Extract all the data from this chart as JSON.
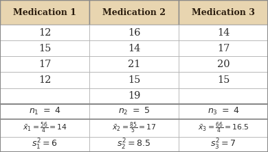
{
  "headers": [
    "Medication 1",
    "Medication 2",
    "Medication 3"
  ],
  "data_rows": [
    [
      "12",
      "16",
      "14"
    ],
    [
      "15",
      "14",
      "17"
    ],
    [
      "17",
      "21",
      "20"
    ],
    [
      "12",
      "15",
      "15"
    ],
    [
      "",
      "19",
      ""
    ]
  ],
  "header_bg": "#e8d5b0",
  "stat_bg": "#ffffff",
  "data_bg": "#ffffff",
  "border_color": "#aaaaaa",
  "thick_border_color": "#888888",
  "header_text_color": "#2b1d0e",
  "text_color": "#2b2b2b",
  "figsize": [
    3.9,
    2.22
  ],
  "dpi": 100,
  "n_texts": [
    "$n_1\\ =\\ 4$",
    "$n_2\\ =\\ 5$",
    "$n_3\\ =\\ 4$"
  ],
  "xbar_texts": [
    "$\\bar{x}_1 = \\frac{56}{4} = 14$",
    "$\\bar{x}_2 = \\frac{85}{5} = 17$",
    "$\\bar{x}_3 = \\frac{66}{4} = 16.5$"
  ],
  "s2_texts": [
    "$s_1^2 = 6$",
    "$s_2^2 = 8.5$",
    "$s_3^2 = 7$"
  ]
}
